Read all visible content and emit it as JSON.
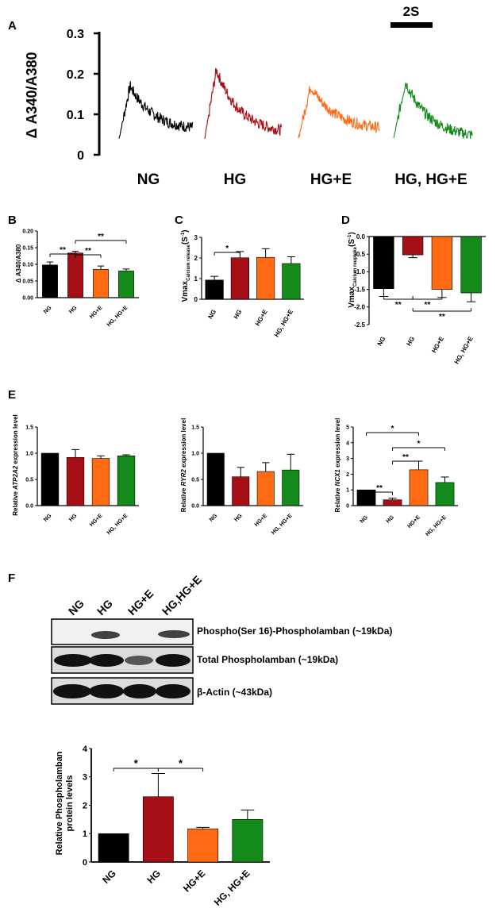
{
  "colors": {
    "NG": "#000000",
    "HG": "#a50f15",
    "HG+E": "#ff6a13",
    "HG, HG+E": "#138a1a"
  },
  "panelA": {
    "label": "A",
    "scale_bar_label": "2S",
    "ylabel": "Δ A340/A380",
    "yticks": [
      "0",
      "0.1",
      "0.2",
      "0.3"
    ],
    "ylim": [
      0,
      0.3
    ],
    "traces": [
      {
        "name": "NG",
        "peak": 0.17,
        "end": 0.06
      },
      {
        "name": "HG",
        "peak": 0.21,
        "end": 0.05
      },
      {
        "name": "HG+E",
        "peak": 0.17,
        "end": 0.06
      },
      {
        "name": "HG, HG+E",
        "peak": 0.18,
        "end": 0.04
      }
    ]
  },
  "panelB": {
    "label": "B",
    "ylabel": "Δ A340/A380",
    "yticks": [
      "0.00",
      "0.05",
      "0.10",
      "0.15",
      "0.20"
    ],
    "sig": [
      "**",
      "**",
      "**"
    ]
  },
  "panelC": {
    "label": "C",
    "ylabel_main": "Vmax",
    "ylabel_sub": "Calcium release",
    "ylabel_unit": "(S",
    "ylabel_exp": "-1",
    "ylabel_close": ")",
    "yticks": [
      "0",
      "1",
      "2",
      "3"
    ],
    "sig": [
      "*"
    ]
  },
  "panelD": {
    "label": "D",
    "ylabel_main": "Vmax",
    "ylabel_sub": "Calcium reuptake",
    "ylabel_unit": "(S",
    "ylabel_exp": "-1",
    "ylabel_close": ")",
    "yticks": [
      "0.0",
      "-0.5",
      "-1.0",
      "-1.5",
      "-2.0",
      "-2.5"
    ],
    "sig": [
      "**",
      "**",
      "**"
    ]
  },
  "panelE": {
    "label": "E",
    "e1": {
      "ylabel_a": "Relative ",
      "ylabel_gene": "ATP2A2",
      "ylabel_b": " expression level",
      "yticks": [
        "0.0",
        "0.5",
        "1.0",
        "1.5"
      ]
    },
    "e2": {
      "ylabel_a": "Relative ",
      "ylabel_gene": "RYR2",
      "ylabel_b": " expression level",
      "yticks": [
        "0.0",
        "0.5",
        "1.0",
        "1.5"
      ]
    },
    "e3": {
      "ylabel_a": "Relative ",
      "ylabel_gene": "NCX1",
      "ylabel_b": " expression level",
      "yticks": [
        "0",
        "1",
        "2",
        "3",
        "4",
        "5"
      ],
      "sig": [
        "*",
        "*",
        "**",
        "**"
      ]
    }
  },
  "panelF": {
    "label": "F",
    "blot_lanes": [
      "NG",
      "HG",
      "HG+E",
      "HG,HG+E"
    ],
    "blot_rows": [
      "Phospho(Ser 16)-Phospholamban (~19kDa)",
      "Total Phospholamban (~19kDa)",
      "β-Actin (~43kDa)"
    ],
    "ylabel_line1": "Relative Phospholamban",
    "ylabel_line2": "protein levels",
    "yticks": [
      "0",
      "1",
      "2",
      "3",
      "4"
    ],
    "sig": [
      "*",
      "*"
    ]
  },
  "chart_data": [
    {
      "panel": "B",
      "type": "bar",
      "categories": [
        "NG",
        "HG",
        "HG+E",
        "HG, HG+E"
      ],
      "values": [
        0.098,
        0.134,
        0.085,
        0.08
      ],
      "errors": [
        0.009,
        0.005,
        0.01,
        0.006
      ],
      "ylabel": "Δ A340/A380",
      "ylim": [
        0,
        0.2
      ]
    },
    {
      "panel": "C",
      "type": "bar",
      "categories": [
        "NG",
        "HG",
        "HG+E",
        "HG, HG+E"
      ],
      "values": [
        0.93,
        2.01,
        2.03,
        1.73
      ],
      "errors": [
        0.18,
        0.3,
        0.42,
        0.33
      ],
      "ylabel": "Vmax Calcium release (S-1)",
      "ylim": [
        0,
        3
      ]
    },
    {
      "panel": "D",
      "type": "bar",
      "categories": [
        "NG",
        "HG",
        "HG+E",
        "HG, HG+E"
      ],
      "values": [
        -1.48,
        -0.52,
        -1.5,
        -1.6
      ],
      "errors": [
        0.22,
        0.08,
        0.23,
        0.25
      ],
      "ylabel": "Vmax Calcium reuptake (S-1)",
      "ylim": [
        -2.5,
        0
      ]
    },
    {
      "panel": "E1",
      "type": "bar",
      "categories": [
        "NG",
        "HG",
        "HG+E",
        "HG, HG+E"
      ],
      "values": [
        1.0,
        0.92,
        0.9,
        0.95
      ],
      "errors": [
        0,
        0.15,
        0.05,
        0.02
      ],
      "ylabel": "Relative ATP2A2 expression level",
      "ylim": [
        0,
        1.5
      ]
    },
    {
      "panel": "E2",
      "type": "bar",
      "categories": [
        "NG",
        "HG",
        "HG+E",
        "HG, HG+E"
      ],
      "values": [
        1.0,
        0.55,
        0.65,
        0.68
      ],
      "errors": [
        0,
        0.18,
        0.17,
        0.3
      ],
      "ylabel": "Relative RYR2 expression level",
      "ylim": [
        0,
        1.5
      ]
    },
    {
      "panel": "E3",
      "type": "bar",
      "categories": [
        "NG",
        "HG",
        "HG+E",
        "HG, HG+E"
      ],
      "values": [
        1.0,
        0.37,
        2.28,
        1.47
      ],
      "errors": [
        0,
        0.1,
        0.55,
        0.35
      ],
      "ylabel": "Relative NCX1 expression level",
      "ylim": [
        0,
        5
      ]
    },
    {
      "panel": "F",
      "type": "bar",
      "categories": [
        "NG",
        "HG",
        "HG+E",
        "HG, HG+E"
      ],
      "values": [
        1.0,
        2.3,
        1.17,
        1.5
      ],
      "errors": [
        0,
        0.82,
        0.05,
        0.33
      ],
      "ylabel": "Relative Phospholamban protein levels",
      "ylim": [
        0,
        4
      ]
    }
  ]
}
